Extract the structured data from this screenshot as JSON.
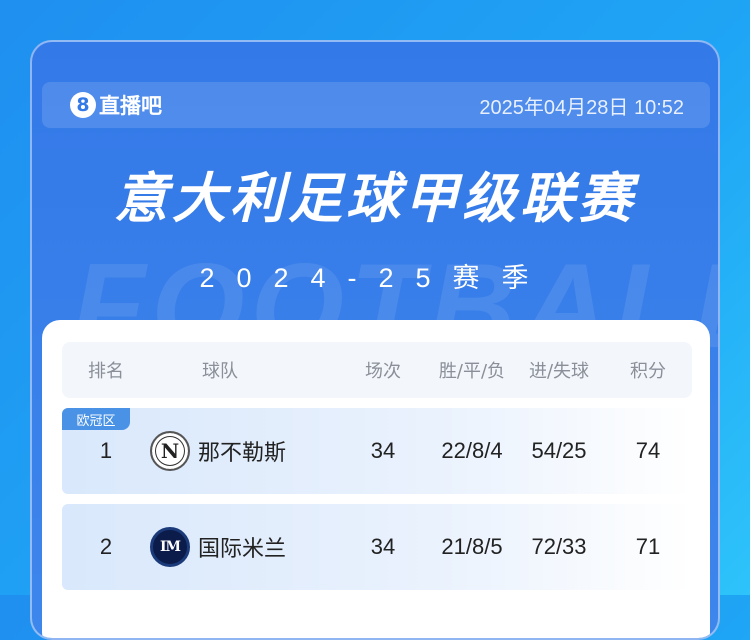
{
  "header": {
    "logo_text": "直播吧",
    "logo_mark": "8",
    "datetime": "2025年04月28日 10:52"
  },
  "title": "意大利足球甲级联赛",
  "subtitle": "2024-25赛季",
  "watermark": "FOOTBALL",
  "table": {
    "columns": [
      "排名",
      "球队",
      "场次",
      "胜/平/负",
      "进/失球",
      "积分"
    ],
    "rows": [
      {
        "badge": "欧冠区",
        "rank": "1",
        "team": "那不勒斯",
        "crest": "N",
        "played": "34",
        "wdl": "22/8/4",
        "goals": "54/25",
        "points": "74"
      },
      {
        "rank": "2",
        "team": "国际米兰",
        "crest": "IM",
        "played": "34",
        "wdl": "21/8/5",
        "goals": "72/33",
        "points": "71"
      }
    ]
  },
  "colors": {
    "accent": "#3479e8",
    "badge": "#4a92e6"
  }
}
